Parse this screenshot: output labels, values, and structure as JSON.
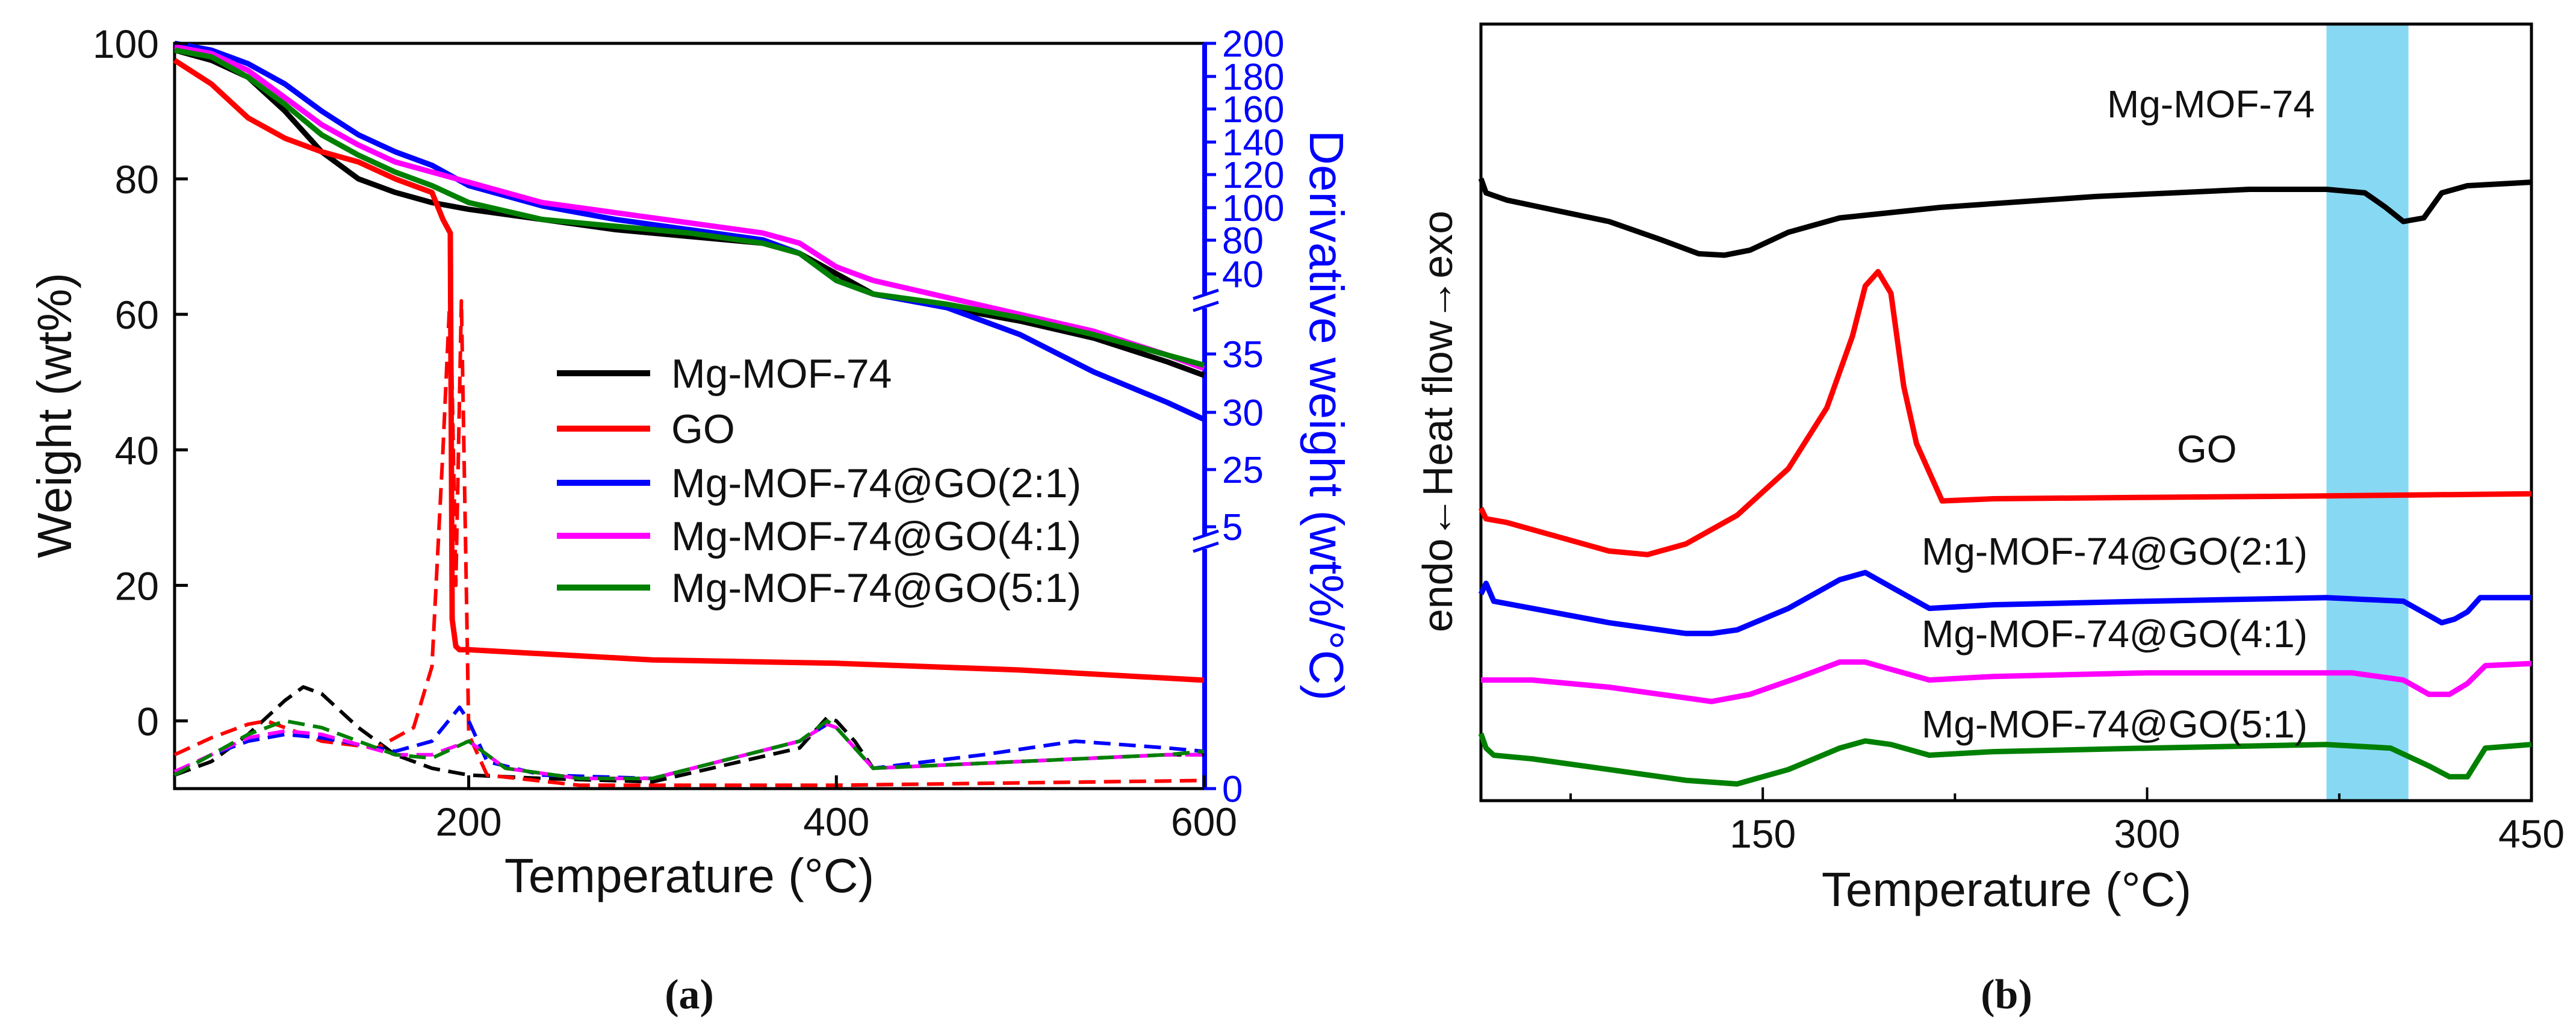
{
  "panels": {
    "a_label": "(a)",
    "b_label": "(b)"
  },
  "chart_data": [
    {
      "type": "line",
      "panel": "a",
      "xlabel": "Temperature (°C)",
      "ylabel": "Weight (wt%)",
      "ylabel_right": "Derivative weight (wt%/°C)",
      "xlim": [
        40,
        600
      ],
      "ylim": [
        -10,
        100
      ],
      "x_ticks": [
        "200",
        "400",
        "600"
      ],
      "y_ticks": [
        "100",
        "80",
        "60",
        "40",
        "20",
        "0"
      ],
      "right_ticks": [
        "200",
        "180",
        "160",
        "140",
        "120",
        "100",
        "80",
        "40",
        "35",
        "30",
        "25",
        "5",
        "0"
      ],
      "legend": [
        "Mg-MOF-74",
        "GO",
        "Mg-MOF-74@GO(2:1)",
        "Mg-MOF-74@GO(4:1)",
        "Mg-MOF-74@GO(5:1)"
      ],
      "series": [
        {
          "name": "Mg-MOF-74",
          "color": "#000000",
          "style": "solid",
          "x": [
            40,
            60,
            80,
            100,
            120,
            140,
            160,
            180,
            200,
            240,
            280,
            320,
            360,
            380,
            400,
            420,
            460,
            500,
            540,
            580,
            600
          ],
          "y": [
            99,
            97.5,
            95,
            90,
            84,
            80,
            78,
            76.5,
            75.5,
            74,
            72.5,
            71.5,
            70.5,
            69,
            66,
            63,
            61,
            59,
            56.5,
            53,
            51
          ]
        },
        {
          "name": "GO",
          "color": "#ff0000",
          "style": "solid",
          "x": [
            40,
            60,
            80,
            100,
            120,
            140,
            160,
            180,
            186,
            190,
            191,
            193,
            195,
            200,
            300,
            400,
            500,
            600
          ],
          "y": [
            97.5,
            94,
            89,
            86,
            84,
            82.5,
            80,
            78,
            74,
            72,
            15,
            11,
            10.5,
            10.5,
            9,
            8.5,
            7.5,
            6
          ]
        },
        {
          "name": "Mg-MOF-74@GO(2:1)",
          "color": "#0000ff",
          "style": "solid",
          "x": [
            40,
            60,
            80,
            100,
            120,
            140,
            160,
            180,
            200,
            240,
            280,
            320,
            360,
            380,
            400,
            420,
            460,
            500,
            540,
            580,
            600
          ],
          "y": [
            100,
            99,
            97,
            94,
            90,
            86.5,
            84,
            82,
            79,
            76,
            74,
            72.5,
            71,
            69,
            65,
            63,
            61,
            57,
            51.5,
            47,
            44.5
          ]
        },
        {
          "name": "Mg-MOF-74@GO(4:1)",
          "color": "#ff00ff",
          "style": "solid",
          "x": [
            40,
            60,
            80,
            100,
            120,
            140,
            160,
            180,
            200,
            240,
            280,
            320,
            360,
            380,
            400,
            420,
            460,
            500,
            540,
            580,
            600
          ],
          "y": [
            99.5,
            98.5,
            96,
            92,
            88,
            85,
            82.5,
            81,
            79.5,
            76.5,
            75,
            73.5,
            72,
            70.5,
            67,
            65,
            62.5,
            60,
            57.5,
            54,
            52
          ]
        },
        {
          "name": "Mg-MOF-74@GO(5:1)",
          "color": "#008000",
          "style": "solid",
          "x": [
            40,
            60,
            80,
            100,
            120,
            140,
            160,
            180,
            200,
            240,
            280,
            320,
            360,
            380,
            400,
            420,
            460,
            500,
            540,
            580,
            600
          ],
          "y": [
            99,
            98,
            95,
            91,
            86.5,
            83.5,
            81,
            79,
            76.5,
            74,
            73,
            72,
            70.5,
            69,
            65,
            63,
            61.5,
            59.5,
            57,
            54,
            52.5
          ]
        },
        {
          "name": "Mg-MOF-74 DTG",
          "color": "#000000",
          "style": "dashed",
          "x": [
            40,
            60,
            80,
            100,
            110,
            120,
            140,
            160,
            180,
            200,
            240,
            300,
            380,
            395,
            400,
            410,
            420,
            500,
            580,
            600
          ],
          "y": [
            -8,
            -6,
            -2,
            3,
            5,
            4,
            -1,
            -5,
            -7,
            -8,
            -8.5,
            -9,
            -4,
            0.5,
            0,
            -3,
            -7,
            -6,
            -5,
            -5
          ]
        },
        {
          "name": "GO DTG",
          "color": "#ff0000",
          "style": "dashed",
          "x": [
            40,
            60,
            80,
            90,
            100,
            120,
            150,
            170,
            180,
            186,
            190,
            193,
            196,
            199,
            200,
            210,
            260,
            400,
            600
          ],
          "y": [
            -5,
            -2.5,
            -0.5,
            0,
            -1,
            -3,
            -4,
            -1,
            8,
            40,
            64,
            20,
            62,
            15,
            -2,
            -8,
            -9.5,
            -9.5,
            -8.8
          ]
        },
        {
          "name": "Mg-MOF-74@GO(2:1) DTG",
          "color": "#0000ff",
          "style": "dashed",
          "x": [
            40,
            60,
            80,
            100,
            120,
            140,
            160,
            180,
            195,
            200,
            210,
            240,
            300,
            380,
            395,
            400,
            420,
            480,
            530,
            580,
            600
          ],
          "y": [
            -8,
            -5,
            -3,
            -2,
            -2.5,
            -3.5,
            -4.5,
            -3,
            2,
            0,
            -6,
            -8,
            -8.5,
            -3,
            -0.5,
            -1,
            -7,
            -5,
            -3,
            -4,
            -4.5
          ]
        },
        {
          "name": "Mg-MOF-74@GO(4:1) DTG",
          "color": "#ff00ff",
          "style": "dashed",
          "x": [
            40,
            60,
            80,
            100,
            120,
            140,
            160,
            180,
            200,
            220,
            260,
            300,
            380,
            395,
            400,
            420,
            500,
            580,
            600
          ],
          "y": [
            -7.5,
            -5,
            -2.5,
            -1.5,
            -2,
            -3.5,
            -5,
            -5,
            -3,
            -7,
            -8.5,
            -8.5,
            -3,
            -0.5,
            -1,
            -7,
            -6,
            -5,
            -5
          ]
        },
        {
          "name": "Mg-MOF-74@GO(5:1) DTG",
          "color": "#008000",
          "style": "dashed",
          "x": [
            40,
            60,
            80,
            100,
            120,
            140,
            160,
            180,
            200,
            220,
            260,
            300,
            380,
            395,
            400,
            420,
            500,
            580,
            600
          ],
          "y": [
            -8,
            -5,
            -2,
            0,
            -1,
            -3,
            -5,
            -5.5,
            -3,
            -7,
            -8.5,
            -8.5,
            -3,
            0,
            -1,
            -7,
            -6,
            -5,
            -4.5
          ]
        }
      ]
    },
    {
      "type": "line",
      "panel": "b",
      "xlabel": "Temperature (°C)",
      "ylabel": "endo←Heat flow→exo",
      "xlim": [
        40,
        450
      ],
      "ylim": [
        0,
        100
      ],
      "x_ticks": [
        "150",
        "300",
        "450"
      ],
      "highlight_band": {
        "x0": 370,
        "x1": 402,
        "color": "#87d8f2"
      },
      "series": [
        {
          "name": "Mg-MOF-74",
          "color": "#000000",
          "label": "Mg-MOF-74",
          "x": [
            40,
            42,
            50,
            70,
            90,
            110,
            125,
            135,
            145,
            160,
            180,
            220,
            280,
            340,
            370,
            385,
            393,
            400,
            408,
            415,
            425,
            450
          ],
          "y": [
            86,
            84,
            83,
            81.5,
            80,
            77.5,
            75.5,
            75.3,
            76,
            78.5,
            80.5,
            82,
            83.5,
            84.5,
            84.5,
            84,
            82,
            80,
            80.5,
            84,
            85,
            85.5
          ]
        },
        {
          "name": "GO",
          "color": "#ff0000",
          "label": "GO",
          "x": [
            40,
            42,
            50,
            70,
            90,
            105,
            120,
            140,
            160,
            175,
            185,
            190,
            195,
            200,
            205,
            210,
            220,
            240,
            300,
            370,
            450
          ],
          "y": [
            40,
            38.5,
            38,
            36,
            34,
            33.5,
            35,
            39,
            45.5,
            54,
            64,
            71,
            73,
            70,
            57,
            49,
            41,
            41.3,
            41.5,
            41.7,
            42
          ]
        },
        {
          "name": "Mg-MOF-74@GO(2:1)",
          "color": "#0000ff",
          "label": "Mg-MOF-74@GO(2:1)",
          "x": [
            40,
            42,
            45,
            60,
            90,
            120,
            130,
            140,
            160,
            180,
            190,
            200,
            215,
            240,
            300,
            370,
            400,
            410,
            415,
            420,
            425,
            430,
            450
          ],
          "y": [
            28,
            29.5,
            27,
            26,
            24,
            22.5,
            22.5,
            23,
            26,
            30,
            31,
            29,
            26,
            26.5,
            27,
            27.5,
            27,
            25,
            24,
            24.5,
            25.5,
            27.5,
            27.5
          ]
        },
        {
          "name": "Mg-MOF-74@GO(4:1)",
          "color": "#ff00ff",
          "label": "Mg-MOF-74@GO(4:1)",
          "x": [
            40,
            60,
            90,
            120,
            130,
            145,
            165,
            180,
            190,
            200,
            215,
            240,
            300,
            380,
            400,
            410,
            418,
            425,
            432,
            450
          ],
          "y": [
            16,
            16,
            15,
            13.5,
            13,
            14,
            16.5,
            18.5,
            18.5,
            17.5,
            16,
            16.5,
            17,
            17,
            16,
            14,
            14,
            15.5,
            18,
            18.3
          ]
        },
        {
          "name": "Mg-MOF-74@GO(5:1)",
          "color": "#008000",
          "label": "Mg-MOF-74@GO(5:1)",
          "x": [
            40,
            42,
            45,
            60,
            90,
            120,
            140,
            160,
            180,
            190,
            200,
            215,
            240,
            300,
            370,
            395,
            410,
            418,
            425,
            432,
            450
          ],
          "y": [
            8.5,
            6.5,
            5.5,
            5,
            3.5,
            2,
            1.5,
            3.5,
            6.5,
            7.5,
            7,
            5.5,
            6,
            6.5,
            7,
            6.5,
            4,
            2.5,
            2.5,
            6.5,
            7
          ]
        }
      ]
    }
  ]
}
